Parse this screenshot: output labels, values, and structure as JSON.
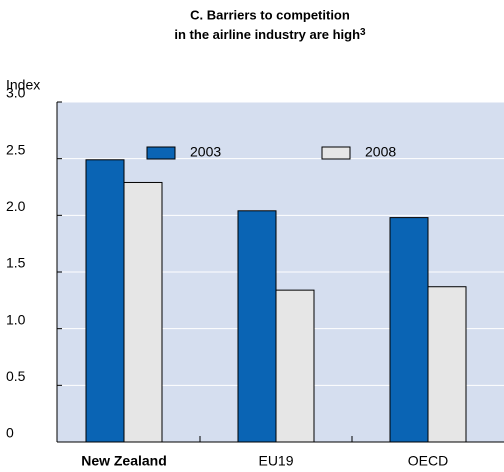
{
  "chart_data": {
    "type": "bar",
    "title": [
      "C. Barriers to competition",
      "in the airline industry are high"
    ],
    "title_footnote": "3",
    "y_label": "Index",
    "categories": [
      "New Zealand",
      "EU19",
      "OECD"
    ],
    "series": [
      {
        "name": "2003",
        "color": "#0a64b4",
        "values": [
          2.49,
          2.04,
          1.98
        ]
      },
      {
        "name": "2008",
        "color": "#e6e6e6",
        "values": [
          2.29,
          1.34,
          1.37
        ]
      }
    ],
    "ylim": [
      0,
      3
    ],
    "yticks": [
      {
        "value": 0,
        "label": "0"
      },
      0.5,
      {
        "value": 1,
        "label": "1.0"
      },
      1.5,
      {
        "value": 2,
        "label": "2.0"
      },
      2.5,
      {
        "value": 3,
        "label": "3.0"
      }
    ],
    "grid": true,
    "legend": "top"
  }
}
